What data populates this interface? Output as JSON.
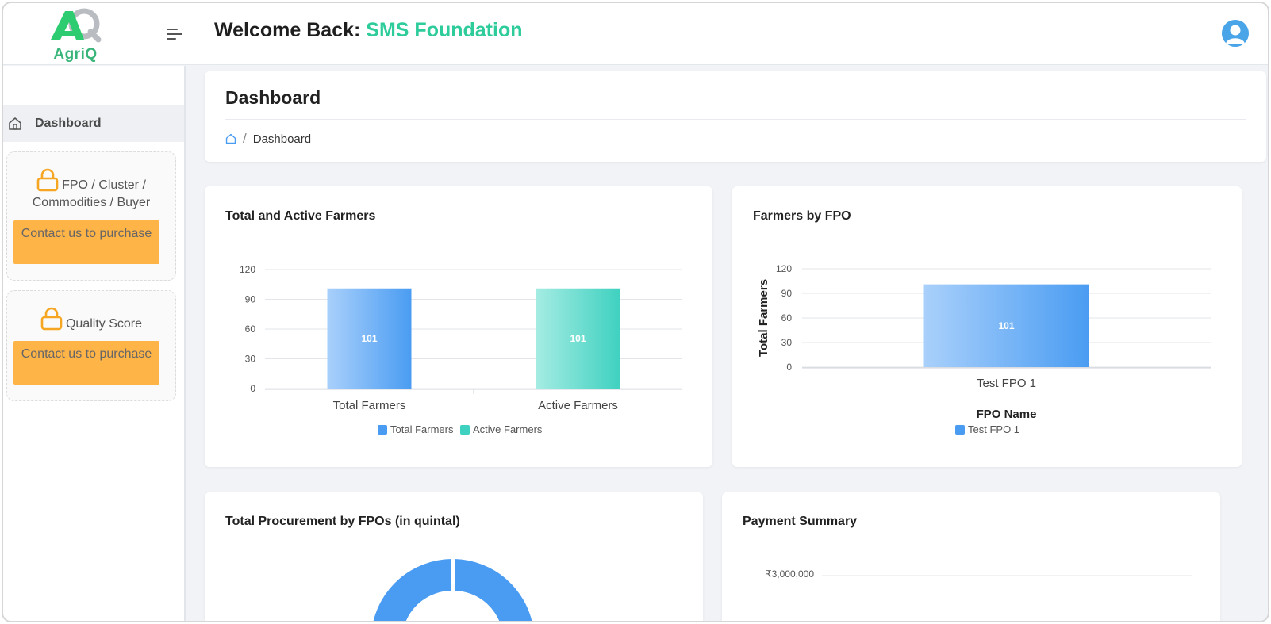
{
  "app": {
    "logo_text": "AgriQ"
  },
  "header": {
    "welcome_prefix": "Welcome Back: ",
    "org_name": "SMS Foundation"
  },
  "sidebar": {
    "items": [
      {
        "label": "Dashboard",
        "icon": "home-icon",
        "active": true
      }
    ],
    "locked": [
      {
        "title": "FPO / Cluster / Commodities / Buyer",
        "button": "Contact us to purchase",
        "icon": "lock-icon"
      },
      {
        "title": "Quality Score",
        "button": "Contact us to purchase",
        "icon": "lock-icon"
      }
    ]
  },
  "page": {
    "title": "Dashboard",
    "breadcrumb": [
      "Dashboard"
    ]
  },
  "colors": {
    "accent": "#2ecc9b",
    "lock": "#f5a623",
    "purchase_button": "#ffb447",
    "blue": "#4a9cf2",
    "teal": "#3fd1c0"
  },
  "cards": {
    "total_active": {
      "title": "Total and Active Farmers"
    },
    "by_fpo": {
      "title": "Farmers by FPO"
    },
    "procurement": {
      "title": "Total Procurement by FPOs (in quintal)"
    },
    "payment": {
      "title": "Payment Summary"
    }
  },
  "chart_data": [
    {
      "type": "bar",
      "title": "Total and Active Farmers",
      "categories": [
        "Total Farmers",
        "Active Farmers"
      ],
      "values": [
        101,
        101
      ],
      "data_labels": [
        "101",
        "101"
      ],
      "yticks": [
        "0",
        "30",
        "60",
        "90",
        "120"
      ],
      "ylim": [
        0,
        120
      ],
      "legend": [
        "Total Farmers",
        "Active Farmers"
      ],
      "legend_position": "bottom",
      "grid": true
    },
    {
      "type": "bar",
      "title": "Farmers by FPO",
      "categories": [
        "Test FPO 1"
      ],
      "series": [
        {
          "name": "Test FPO 1",
          "values": [
            101
          ]
        }
      ],
      "data_labels": [
        "101"
      ],
      "xlabel": "FPO Name",
      "ylabel": "Total Farmers",
      "yticks": [
        "0",
        "30",
        "60",
        "90",
        "120"
      ],
      "ylim": [
        0,
        120
      ],
      "legend_position": "bottom",
      "grid": true
    },
    {
      "type": "pie",
      "title": "Total Procurement by FPOs (in quintal)"
    },
    {
      "type": "line",
      "title": "Payment Summary",
      "yticks": [
        "₹3,000,000"
      ]
    }
  ]
}
